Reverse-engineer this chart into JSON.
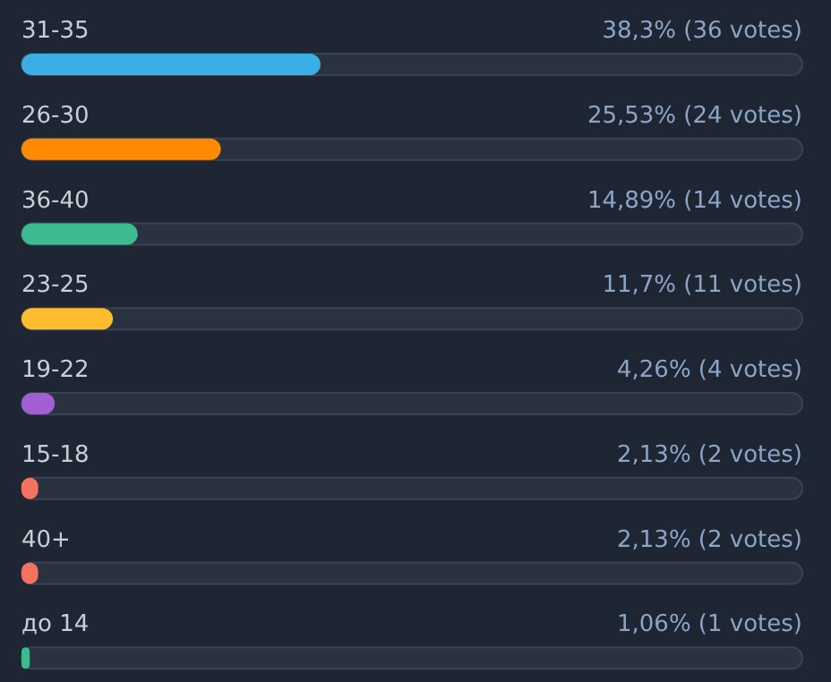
{
  "chart_data": {
    "type": "bar",
    "orientation": "horizontal",
    "categories": [
      "31-35",
      "26-30",
      "36-40",
      "23-25",
      "19-22",
      "15-18",
      "40+",
      "до 14"
    ],
    "values": [
      38.3,
      25.53,
      14.89,
      11.7,
      4.26,
      2.13,
      2.13,
      1.06
    ],
    "value_labels": [
      "38,3% (36 votes)",
      "25,53% (24 votes)",
      "14,89% (14 votes)",
      "11,7% (11 votes)",
      "4,26% (4 votes)",
      "2,13% (2 votes)",
      "2,13% (2 votes)",
      "1,06% (1 votes)"
    ],
    "colors": [
      "#3aaee6",
      "#ff8a00",
      "#3dba8f",
      "#ffbd2e",
      "#a25fd3",
      "#f4725f",
      "#f4725f",
      "#3dba8f"
    ],
    "xlim": [
      0,
      100
    ],
    "tick_labels": false
  }
}
